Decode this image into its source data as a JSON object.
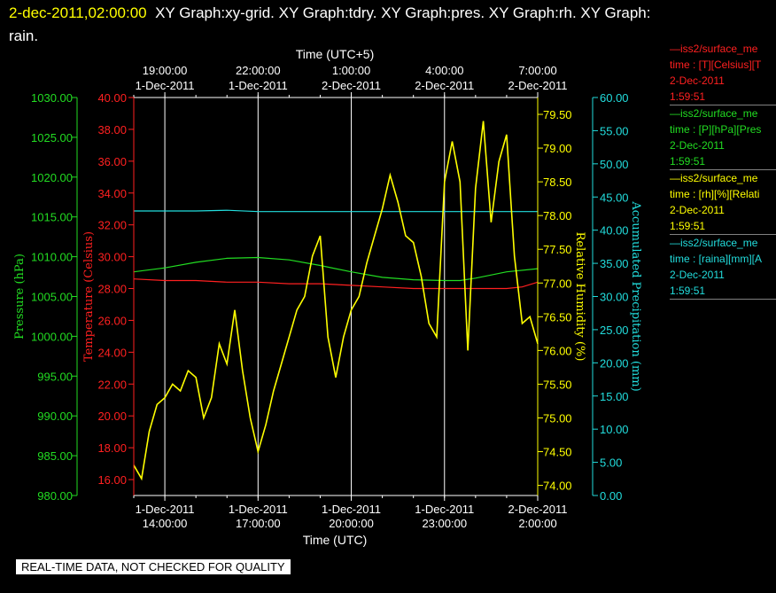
{
  "header": {
    "timestamp": "2-dec-2011,02:00:00",
    "title": "XY Graph:xy-grid.  XY Graph:tdry.  XY Graph:pres.  XY Graph:rh.  XY Graph: rain."
  },
  "footer": {
    "notice": "REAL-TIME DATA, NOT CHECKED FOR QUALITY"
  },
  "colors": {
    "background": "#000000",
    "temperature": "#ff2020",
    "pressure": "#22dd22",
    "humidity": "#ffff00",
    "precipitation": "#22dddd",
    "grid": "#ffffff"
  },
  "legend": [
    {
      "line1": "—iss2/surface_me",
      "line2": "time : [T][Celsius][T",
      "line3": "2-Dec-2011",
      "line4": "1:59:51",
      "color": "#ff2020"
    },
    {
      "line1": "—iss2/surface_me",
      "line2": "time : [P][hPa][Pres",
      "line3": "2-Dec-2011",
      "line4": "1:59:51",
      "color": "#22dd22"
    },
    {
      "line1": "—iss2/surface_me",
      "line2": "time : [rh][%][Relati",
      "line3": "2-Dec-2011",
      "line4": "1:59:51",
      "color": "#ffff00"
    },
    {
      "line1": "—iss2/surface_me",
      "line2": "time : [raina][mm][A",
      "line3": "2-Dec-2011",
      "line4": "1:59:51",
      "color": "#22dddd"
    }
  ],
  "chart_data": {
    "type": "line",
    "xlabel": "Time (UTC)",
    "x2label": "Time (UTC+5)",
    "xlim_hours_utc": [
      "2011-12-01 13:00",
      "2011-12-02 02:00"
    ],
    "x_ticks": [
      {
        "hour": 14,
        "top": "1-Dec-2011",
        "bottom": "14:00:00"
      },
      {
        "hour": 17,
        "top": "1-Dec-2011",
        "bottom": "17:00:00"
      },
      {
        "hour": 20,
        "top": "1-Dec-2011",
        "bottom": "20:00:00"
      },
      {
        "hour": 23,
        "top": "1-Dec-2011",
        "bottom": "23:00:00"
      },
      {
        "hour": 26,
        "top": "2-Dec-2011",
        "bottom": "2:00:00"
      }
    ],
    "x2_ticks": [
      {
        "hour": 14,
        "top": "19:00:00",
        "bottom": "1-Dec-2011"
      },
      {
        "hour": 17,
        "top": "22:00:00",
        "bottom": "1-Dec-2011"
      },
      {
        "hour": 20,
        "top": "1:00:00",
        "bottom": "2-Dec-2011"
      },
      {
        "hour": 23,
        "top": "4:00:00",
        "bottom": "2-Dec-2011"
      },
      {
        "hour": 26,
        "top": "7:00:00",
        "bottom": "2-Dec-2011"
      }
    ],
    "axes": {
      "pressure": {
        "label": "Pressure (hPa)",
        "ylim": [
          980,
          1030
        ],
        "ticks": [
          "980.00",
          "985.00",
          "990.00",
          "995.00",
          "1000.00",
          "1005.00",
          "1010.00",
          "1015.00",
          "1020.00",
          "1025.00",
          "1030.00"
        ]
      },
      "temperature": {
        "label": "Temperature (Celsius)",
        "ylim": [
          15,
          40
        ],
        "ticks": [
          "16.00",
          "18.00",
          "20.00",
          "22.00",
          "24.00",
          "26.00",
          "28.00",
          "30.00",
          "32.00",
          "34.00",
          "36.00",
          "38.00",
          "40.00"
        ]
      },
      "humidity": {
        "label": "Relative Humidity (%)",
        "ylim": [
          73.85,
          79.75
        ],
        "ticks": [
          "74.00",
          "74.50",
          "75.00",
          "75.50",
          "76.00",
          "76.50",
          "77.00",
          "77.50",
          "78.00",
          "78.50",
          "79.00",
          "79.50"
        ]
      },
      "precipitation": {
        "label": "Accumulated Precipitation (mm)",
        "ylim": [
          0,
          60
        ],
        "ticks": [
          "0.00",
          "5.00",
          "10.00",
          "15.00",
          "20.00",
          "25.00",
          "30.00",
          "35.00",
          "40.00",
          "45.00",
          "50.00",
          "55.00",
          "60.00"
        ]
      }
    },
    "grid": true,
    "series": [
      {
        "name": "temperature",
        "axis": "temperature",
        "x": [
          13.0,
          14.0,
          15.0,
          16.0,
          17.0,
          18.0,
          19.0,
          20.0,
          21.0,
          22.0,
          23.0,
          24.0,
          25.0,
          25.5,
          26.0
        ],
        "y": [
          28.6,
          28.5,
          28.5,
          28.4,
          28.4,
          28.3,
          28.3,
          28.2,
          28.1,
          28.0,
          28.0,
          28.0,
          28.0,
          28.1,
          28.4
        ]
      },
      {
        "name": "pressure",
        "axis": "pressure",
        "x": [
          13.0,
          14.0,
          15.0,
          16.0,
          17.0,
          18.0,
          19.0,
          20.0,
          21.0,
          22.0,
          23.0,
          23.5,
          24.0,
          25.0,
          26.0
        ],
        "y": [
          1008.1,
          1008.6,
          1009.3,
          1009.8,
          1009.9,
          1009.6,
          1008.9,
          1008.1,
          1007.4,
          1007.1,
          1007.0,
          1007.0,
          1007.3,
          1008.1,
          1008.5
        ]
      },
      {
        "name": "precipitation",
        "axis": "precipitation",
        "x": [
          13.0,
          14.0,
          15.0,
          16.0,
          17.0,
          18.0,
          19.0,
          20.0,
          21.0,
          22.0,
          23.0,
          24.0,
          25.0,
          26.0
        ],
        "y": [
          42.9,
          42.9,
          42.9,
          43.0,
          42.8,
          42.8,
          42.8,
          42.8,
          42.8,
          42.8,
          42.8,
          42.8,
          42.8,
          42.8
        ]
      },
      {
        "name": "humidity",
        "axis": "humidity",
        "x": [
          13.0,
          13.25,
          13.5,
          13.75,
          14.0,
          14.25,
          14.5,
          14.75,
          15.0,
          15.25,
          15.5,
          15.75,
          16.0,
          16.25,
          16.5,
          16.75,
          17.0,
          17.25,
          17.5,
          17.75,
          18.0,
          18.25,
          18.5,
          18.75,
          19.0,
          19.25,
          19.5,
          19.75,
          20.0,
          20.25,
          20.5,
          20.75,
          21.0,
          21.25,
          21.5,
          21.75,
          22.0,
          22.25,
          22.5,
          22.75,
          23.0,
          23.25,
          23.5,
          23.75,
          24.0,
          24.25,
          24.5,
          24.75,
          25.0,
          25.25,
          25.5,
          25.75,
          26.0
        ],
        "y": [
          74.3,
          74.1,
          74.8,
          75.2,
          75.3,
          75.5,
          75.4,
          75.7,
          75.6,
          75.0,
          75.3,
          76.1,
          75.8,
          76.6,
          75.7,
          75.0,
          74.5,
          74.9,
          75.4,
          75.8,
          76.2,
          76.6,
          76.8,
          77.4,
          77.7,
          76.2,
          75.6,
          76.2,
          76.6,
          76.8,
          77.3,
          77.7,
          78.1,
          78.6,
          78.2,
          77.7,
          77.6,
          77.1,
          76.4,
          76.2,
          78.5,
          79.1,
          78.5,
          76.0,
          78.4,
          79.4,
          77.9,
          78.8,
          79.2,
          77.4,
          76.4,
          76.5,
          76.1
        ]
      }
    ]
  }
}
